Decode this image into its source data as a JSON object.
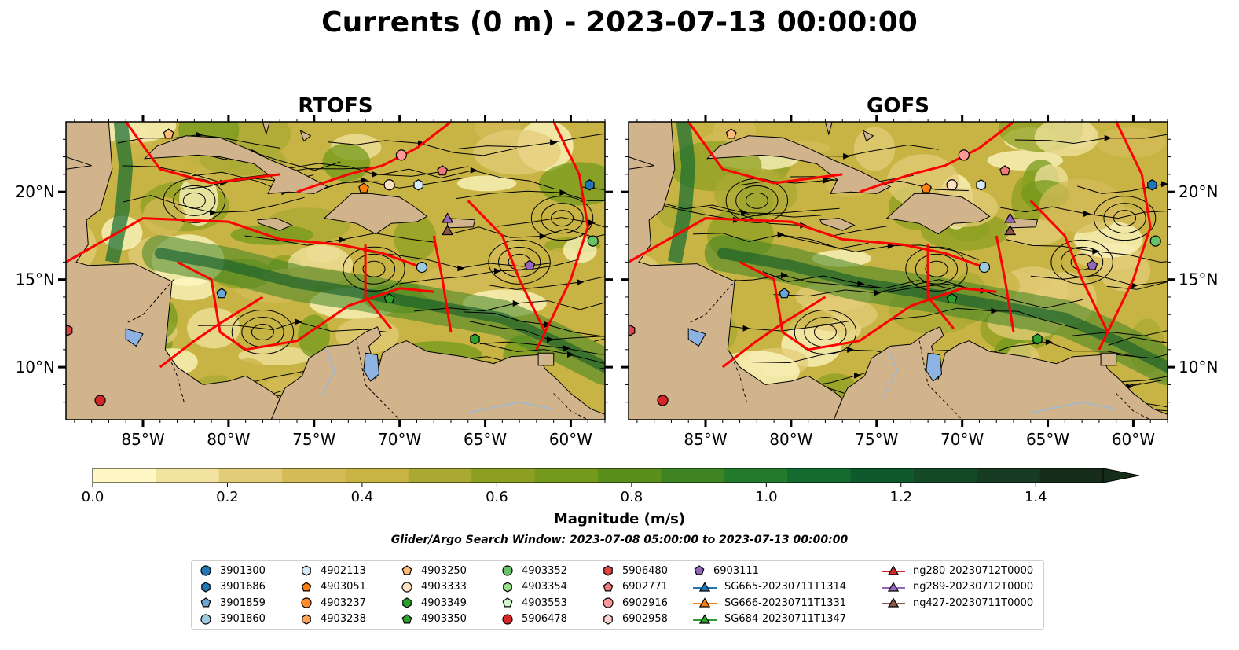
{
  "title": "Currents (0 m) - 2023-07-13 00:00:00",
  "panels": [
    {
      "title": "RTOFS"
    },
    {
      "title": "GOFS"
    }
  ],
  "axes": {
    "lon_ticks": [
      "85°W",
      "80°W",
      "75°W",
      "70°W",
      "65°W",
      "60°W"
    ],
    "lon_values": [
      -85,
      -80,
      -75,
      -70,
      -65,
      -60
    ],
    "lat_ticks": [
      "20°N",
      "15°N",
      "10°N"
    ],
    "lat_values": [
      20,
      15,
      10
    ],
    "lon_range": [
      -89.5,
      -58.0
    ],
    "lat_range": [
      7.0,
      24.0
    ]
  },
  "colorbar": {
    "label": "Magnitude (m/s)",
    "ticks": [
      "0.0",
      "0.2",
      "0.4",
      "0.6",
      "0.8",
      "1.0",
      "1.2",
      "1.4"
    ],
    "tick_values": [
      0.0,
      0.2,
      0.4,
      0.6,
      0.8,
      1.0,
      1.2,
      1.4
    ],
    "range": [
      0.0,
      1.5
    ],
    "colors": [
      "#fff8c5",
      "#f2e3a0",
      "#e3cc78",
      "#d4bb58",
      "#c8b444",
      "#a9a934",
      "#8ea022",
      "#74991c",
      "#5a8f1c",
      "#3f8423",
      "#237a2c",
      "#146b30",
      "#0f5a2c",
      "#144a27",
      "#163b22",
      "#162d1a"
    ]
  },
  "search_window": "Glider/Argo Search Window: 2023-07-08 05:00:00 to 2023-07-13 00:00:00",
  "legend": {
    "columns": [
      [
        {
          "label": "3901300",
          "marker": "circle",
          "color": "#1f77b4"
        },
        {
          "label": "3901686",
          "marker": "hexagon",
          "color": "#1f77b4"
        },
        {
          "label": "3901859",
          "marker": "pentagon",
          "color": "#6ba6d9"
        },
        {
          "label": "3901860",
          "marker": "circle",
          "color": "#9ecae1"
        }
      ],
      [
        {
          "label": "4902113",
          "marker": "hexagon",
          "color": "#d6e9f8"
        },
        {
          "label": "4903051",
          "marker": "pentagon",
          "color": "#ff7f0e"
        },
        {
          "label": "4903237",
          "marker": "circle",
          "color": "#ff8c2a"
        },
        {
          "label": "4903238",
          "marker": "hexagon",
          "color": "#ffa65c"
        }
      ],
      [
        {
          "label": "4903250",
          "marker": "pentagon",
          "color": "#ffbb78"
        },
        {
          "label": "4903333",
          "marker": "circle",
          "color": "#ffe0c2"
        },
        {
          "label": "4903349",
          "marker": "hexagon",
          "color": "#2ca02c"
        },
        {
          "label": "4903350",
          "marker": "pentagon",
          "color": "#2ca02c"
        }
      ],
      [
        {
          "label": "4903352",
          "marker": "circle",
          "color": "#66c266"
        },
        {
          "label": "4903354",
          "marker": "hexagon",
          "color": "#98df8a"
        },
        {
          "label": "4903553",
          "marker": "pentagon",
          "color": "#d2f5cc"
        },
        {
          "label": "5906478",
          "marker": "circle",
          "color": "#d62728"
        }
      ],
      [
        {
          "label": "5906480",
          "marker": "hexagon",
          "color": "#e04546"
        },
        {
          "label": "6902771",
          "marker": "pentagon",
          "color": "#f07a7a"
        },
        {
          "label": "6902916",
          "marker": "circle",
          "color": "#ff9896"
        },
        {
          "label": "6902958",
          "marker": "hexagon",
          "color": "#ffd3d2"
        }
      ],
      [
        {
          "label": "6903111",
          "marker": "pentagon",
          "color": "#9467bd"
        },
        {
          "label": "SG665-20230711T1314",
          "marker": "triangle-line",
          "color": "#1f77b4"
        },
        {
          "label": "SG666-20230711T1331",
          "marker": "triangle-line",
          "color": "#ff7f0e"
        },
        {
          "label": "SG684-20230711T1347",
          "marker": "triangle-line",
          "color": "#2ca02c"
        }
      ],
      [
        {
          "label": "ng280-20230712T0000",
          "marker": "triangle-line",
          "color": "#d62728"
        },
        {
          "label": "ng289-20230712T0000",
          "marker": "triangle-line",
          "color": "#9467bd"
        },
        {
          "label": "ng427-20230711T0000",
          "marker": "triangle-line",
          "color": "#8c564b"
        }
      ]
    ]
  },
  "chart_data": {
    "type": "map",
    "variable": "Currents (0 m)",
    "time": "2023-07-13 00:00:00",
    "units": "m/s",
    "markers": [
      {
        "id": "4903250",
        "lon": -83.5,
        "lat": 23.3
      },
      {
        "id": "6902916",
        "lon": -69.9,
        "lat": 22.1
      },
      {
        "id": "6902771",
        "lon": -67.5,
        "lat": 21.2
      },
      {
        "id": "4903051",
        "lon": -72.1,
        "lat": 20.2
      },
      {
        "id": "4903333",
        "lon": -70.6,
        "lat": 20.4
      },
      {
        "id": "4902113",
        "lon": -68.9,
        "lat": 20.4
      },
      {
        "id": "3901686",
        "lon": -58.9,
        "lat": 20.4
      },
      {
        "id": "ng289-20230712T0000",
        "lon": -67.2,
        "lat": 18.5
      },
      {
        "id": "ng427-20230711T0000",
        "lon": -67.2,
        "lat": 17.8
      },
      {
        "id": "4903352",
        "lon": -58.7,
        "lat": 17.2
      },
      {
        "id": "3901860",
        "lon": -68.7,
        "lat": 15.7
      },
      {
        "id": "6903111",
        "lon": -62.4,
        "lat": 15.8
      },
      {
        "id": "3901859",
        "lon": -80.4,
        "lat": 14.2
      },
      {
        "id": "4903350",
        "lon": -70.6,
        "lat": 13.9
      },
      {
        "id": "4903349",
        "lon": -65.6,
        "lat": 11.6
      },
      {
        "id": "5906480",
        "lon": -89.4,
        "lat": 12.1
      },
      {
        "id": "5906478",
        "lon": -87.5,
        "lat": 8.1
      }
    ]
  }
}
